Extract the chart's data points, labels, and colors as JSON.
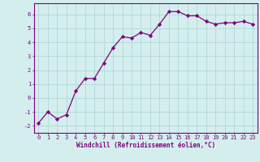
{
  "x": [
    0,
    1,
    2,
    3,
    4,
    5,
    6,
    7,
    8,
    9,
    10,
    11,
    12,
    13,
    14,
    15,
    16,
    17,
    18,
    19,
    20,
    21,
    22,
    23
  ],
  "y": [
    -1.8,
    -1.0,
    -1.5,
    -1.2,
    0.5,
    1.4,
    1.4,
    2.5,
    3.6,
    4.4,
    4.3,
    4.7,
    4.5,
    5.3,
    6.2,
    6.2,
    5.9,
    5.9,
    5.5,
    5.3,
    5.4,
    5.4,
    5.5,
    5.3
  ],
  "xlim": [
    -0.5,
    23.5
  ],
  "ylim": [
    -2.5,
    6.8
  ],
  "yticks": [
    -2,
    -1,
    0,
    1,
    2,
    3,
    4,
    5,
    6
  ],
  "xticks": [
    0,
    1,
    2,
    3,
    4,
    5,
    6,
    7,
    8,
    9,
    10,
    11,
    12,
    13,
    14,
    15,
    16,
    17,
    18,
    19,
    20,
    21,
    22,
    23
  ],
  "xlabel": "Windchill (Refroidissement éolien,°C)",
  "line_color": "#800080",
  "marker_color": "#800080",
  "bg_color": "#d4eeee",
  "grid_color": "#b0d8d8",
  "axis_color": "#800080",
  "tick_color": "#800080",
  "label_color": "#800080",
  "tick_fontsize": 5.0,
  "ylabel_fontsize": 5.5,
  "xlabel_fontsize": 5.5
}
